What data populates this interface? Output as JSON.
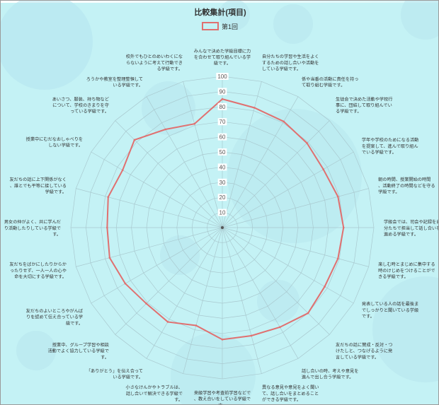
{
  "chart_data": {
    "type": "radar",
    "title": "比較集計(項目)",
    "legend": {
      "position": "top",
      "entries": [
        "第1回"
      ]
    },
    "series": [
      {
        "name": "第1回",
        "color": "#e07070",
        "values": [
          85,
          82,
          81,
          79,
          77,
          79,
          80,
          79,
          78,
          80,
          76,
          74,
          74,
          67,
          72,
          71,
          74,
          77,
          76,
          78,
          76,
          82,
          75,
          71
        ]
      }
    ],
    "r_range": [
      0,
      100
    ],
    "ticks": [
      10,
      20,
      30,
      40,
      50,
      60,
      70,
      80,
      90,
      100
    ],
    "categories": [
      "みんなで決めた学級目標に力\nを合わせて取り組んでいる学\n級です。",
      "自分たちの学習や生活をよく\nするための話し合いや活動を\nしている学級です。",
      "係や当番の活動に責任を持っ\nて取り組む学級です。",
      "生徒会で決めた活動や学校行\n事に、団結して取り組んでい\nる学級です。",
      "学年や学校のためになる活動\nを提案して、進んで取り組ん\nでいる学級です。",
      "朝の時間、授業開始の時間\n、活動終了の時間などを守る\n学級です。",
      "学級会では、司会や記録を自\n分たちで担当して話し合いを\n進める学級です。",
      "楽しむ時とまじめに集中する\n時のけじめをつけることがで\nきる学級です。",
      "発表している人の話を最後ま\nでしっかりと聞いている学級\nです。",
      "友だちの話に賛成・反対・つ\nけたしと、つなげるように発\n言している学級です。",
      "話し合いの時、考えや意見を\n進んで出し合う学級です。",
      "異なる意見や意見をよく聞い\nて、話し合いをまとめること\nができる学級です。",
      "来級学習や考査前学習などで\n、教え合いをしている学級で\nす。",
      "小さなけんかやトラブルは、\n話し合いで解決できる学級で\nす。",
      "「ありがとう」を伝え合って\nいる学級です。",
      "授業中、グループ学習や相談\n活動でよく協力している学級で\nす。",
      "友だちのよいところやがんば\nりを認めて伝え合っている学\n級です。",
      "友だちをばかにしたりからか\nったりせず、一人一人の心や\n命を大切にする学級です。",
      "男女の仲がよく、共に学んだ\nり活動したりしている学級で\nす。",
      "友だちの話に上下関係がなく\n、誰とでも平等に接している\n学級です。",
      "授業中にむだなおしゃべりを\nしない学級です。",
      "あいさつ、服装、持ち物など\nについて、学校のきまりを守\nっている学級です。",
      "ろうかや教室を整理整頓して\nいる学級です。",
      "校外でもひとのめいわくにな\nらないように考えて行動でき\nる学級です。"
    ]
  }
}
